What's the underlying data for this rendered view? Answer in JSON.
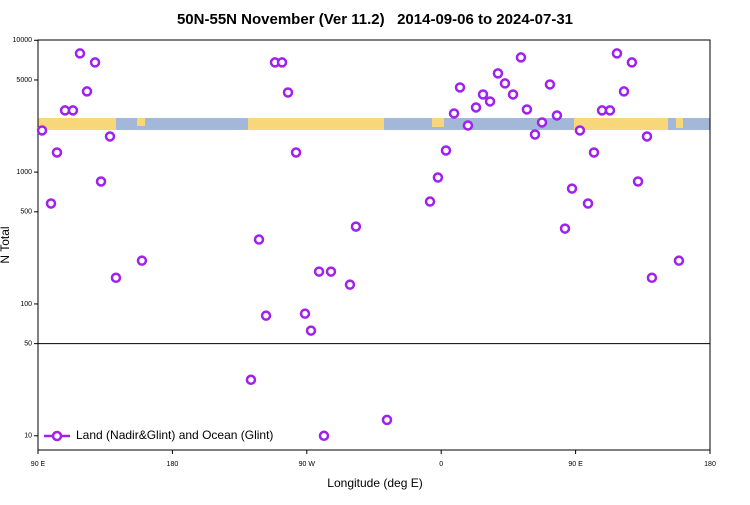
{
  "chart_data": {
    "type": "scatter",
    "title": "50N-55N November (Ver 11.2)   2014-09-06 to 2024-07-31",
    "xlabel": "Longitude (deg E)",
    "ylabel": "N Total",
    "log_y": true,
    "legend": "lower left",
    "hline": 50,
    "xlim": [
      90,
      540
    ],
    "xticks": [
      {
        "value": 90,
        "label": "90 E"
      },
      180,
      {
        "value": 270,
        "label": "90 W"
      },
      {
        "value": 360,
        "label": "0"
      },
      {
        "value": 450,
        "label": "90 E"
      },
      {
        "value": 540,
        "label": "180"
      }
    ],
    "ylim": [
      7.8,
      10050
    ],
    "yticks": [
      10,
      50,
      100,
      500,
      1000,
      5000,
      10000
    ],
    "series": [
      {
        "name": "Land (Nadir&Glint) and Ocean (Glint)",
        "color": "#a020f0",
        "x": [
          92.7,
          98.7,
          102.7,
          108.1,
          113.4,
          118.1,
          122.8,
          128.2,
          132.2,
          138.2,
          142.2,
          159.6,
          232.6,
          238.0,
          242.7,
          248.7,
          253.4,
          257.4,
          262.8,
          268.8,
          272.8,
          278.2,
          281.5,
          286.2,
          298.9,
          302.9,
          323.7,
          352.5,
          357.8,
          363.2,
          368.6,
          372.6,
          377.9,
          383.3,
          388.0,
          392.7,
          398.0,
          402.7,
          408.1,
          413.4,
          417.4,
          422.8,
          427.5,
          432.8,
          437.5,
          442.9,
          447.6,
          452.9,
          458.3,
          462.3,
          467.7,
          473.0,
          477.7,
          482.4,
          487.7,
          491.8,
          497.8,
          501.1,
          519.2
        ],
        "values": [
          2070,
          578,
          1409,
          2937,
          2937,
          7950,
          4093,
          6792,
          849,
          1864,
          158,
          213,
          26.6,
          308,
          81.5,
          6792,
          6792,
          4018,
          1409,
          84.4,
          62.7,
          176,
          10,
          176,
          140,
          386,
          13.2,
          598,
          910,
          1459,
          2786,
          4388,
          2259,
          3093,
          3882,
          3436,
          5610,
          4707,
          3882,
          7415,
          2987,
          1929,
          2381,
          4624,
          2690,
          373,
          750,
          2070,
          578,
          1409,
          2937,
          2937,
          7950,
          4093,
          6792,
          849,
          1864,
          158,
          213
        ]
      }
    ]
  }
}
